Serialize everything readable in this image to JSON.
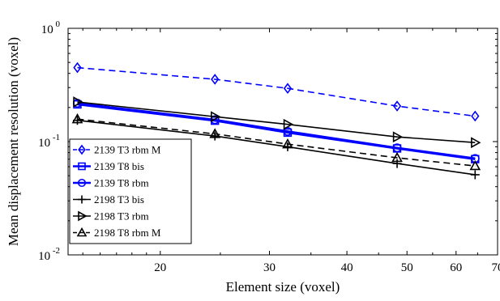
{
  "chart_data": {
    "type": "line",
    "xlabel": "Element size (voxel)",
    "ylabel": "Mean displacement resolution (voxel)",
    "x_scale": "log",
    "y_scale": "log",
    "xlim": [
      14.2,
      70
    ],
    "ylim": [
      0.01,
      1
    ],
    "x_ticks": [
      20,
      30,
      40,
      50,
      60,
      70
    ],
    "x_tick_labels": [
      "20",
      "30",
      "40",
      "50",
      "60",
      "70"
    ],
    "y_ticks": [
      0.01,
      0.1,
      1
    ],
    "y_tick_labels": [
      {
        "base": "10",
        "exp": "-2"
      },
      {
        "base": "10",
        "exp": "-1"
      },
      {
        "base": "10",
        "exp": "0"
      }
    ],
    "grid": false,
    "legend_position": "bottom-left",
    "series": [
      {
        "name": "2139 T3 rbm M",
        "color": "#0000ff",
        "marker": "diamond",
        "dash": true,
        "thick": false,
        "x": [
          14.7,
          24.5,
          32.1,
          48.2,
          64.4
        ],
        "y": [
          0.45,
          0.355,
          0.295,
          0.206,
          0.168
        ]
      },
      {
        "name": "2139 T8 bis",
        "color": "#0000ff",
        "marker": "square",
        "dash": false,
        "thick": true,
        "x": [
          14.7,
          24.5,
          32.1,
          48.2,
          64.4
        ],
        "y": [
          0.213,
          0.153,
          0.12,
          0.087,
          0.07
        ]
      },
      {
        "name": "2139 T8 rbm",
        "color": "#0000ff",
        "marker": "circle",
        "dash": false,
        "thick": true,
        "x": [
          14.7,
          24.5,
          32.1,
          48.2,
          64.4
        ],
        "y": [
          0.218,
          0.156,
          0.123,
          0.088,
          0.071
        ]
      },
      {
        "name": "2198 T3 bis",
        "color": "#000000",
        "marker": "plus",
        "dash": false,
        "thick": false,
        "x": [
          14.7,
          24.5,
          32.1,
          48.2,
          64.4
        ],
        "y": [
          0.154,
          0.112,
          0.09,
          0.064,
          0.051
        ]
      },
      {
        "name": "2198 T3 rbm",
        "color": "#000000",
        "marker": "triangle-right",
        "dash": false,
        "thick": false,
        "x": [
          14.7,
          24.5,
          32.1,
          48.2,
          64.4
        ],
        "y": [
          0.224,
          0.166,
          0.142,
          0.11,
          0.098
        ]
      },
      {
        "name": "2198 T8 rbm M",
        "color": "#000000",
        "marker": "triangle-up",
        "dash": true,
        "thick": false,
        "x": [
          14.7,
          24.5,
          32.1,
          48.2,
          64.4
        ],
        "y": [
          0.158,
          0.117,
          0.095,
          0.072,
          0.061
        ]
      }
    ]
  }
}
